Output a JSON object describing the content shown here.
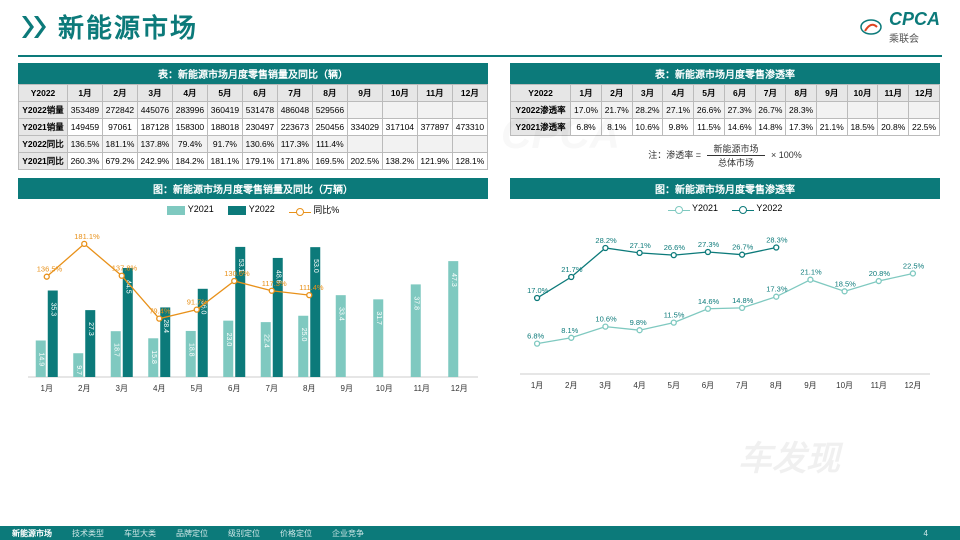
{
  "title": "新能源市场",
  "logo": {
    "brand": "CPCA",
    "sub": "乘联会"
  },
  "accent": "#0c7a7a",
  "orange": "#e8911a",
  "light_teal": "#7fc9c0",
  "months": [
    "1月",
    "2月",
    "3月",
    "4月",
    "5月",
    "6月",
    "7月",
    "8月",
    "9月",
    "10月",
    "11月",
    "12月"
  ],
  "table1": {
    "title": "表：新能源市场月度零售销量及同比（辆）",
    "head": "Y2022",
    "rows": [
      {
        "label": "Y2022销量",
        "cells": [
          "353489",
          "272842",
          "445076",
          "283996",
          "360419",
          "531478",
          "486048",
          "529566",
          "",
          "",
          "",
          ""
        ]
      },
      {
        "label": "Y2021销量",
        "cells": [
          "149459",
          "97061",
          "187128",
          "158300",
          "188018",
          "230497",
          "223673",
          "250456",
          "334029",
          "317104",
          "377897",
          "473310"
        ]
      },
      {
        "label": "Y2022同比",
        "cells": [
          "136.5%",
          "181.1%",
          "137.8%",
          "79.4%",
          "91.7%",
          "130.6%",
          "117.3%",
          "111.4%",
          "",
          "",
          "",
          ""
        ]
      },
      {
        "label": "Y2021同比",
        "cells": [
          "260.3%",
          "679.2%",
          "242.9%",
          "184.2%",
          "181.1%",
          "179.1%",
          "171.8%",
          "169.5%",
          "202.5%",
          "138.2%",
          "121.9%",
          "128.1%"
        ]
      }
    ]
  },
  "table2": {
    "title": "表：新能源市场月度零售渗透率",
    "head": "Y2022",
    "rows": [
      {
        "label": "Y2022渗透率",
        "cells": [
          "17.0%",
          "21.7%",
          "28.2%",
          "27.1%",
          "26.6%",
          "27.3%",
          "26.7%",
          "28.3%",
          "",
          "",
          "",
          ""
        ]
      },
      {
        "label": "Y2021渗透率",
        "cells": [
          "6.8%",
          "8.1%",
          "10.6%",
          "9.8%",
          "11.5%",
          "14.6%",
          "14.8%",
          "17.3%",
          "21.1%",
          "18.5%",
          "20.8%",
          "22.5%"
        ]
      }
    ],
    "note_prefix": "注：渗透率 =",
    "note_num": "新能源市场",
    "note_den": "总体市场",
    "note_suffix": "× 100%"
  },
  "chart1": {
    "title": "图：新能源市场月度零售销量及同比（万辆）",
    "legend": {
      "y2021": "Y2021",
      "y2022": "Y2022",
      "yoy": "同比%"
    },
    "y2021": [
      14.9,
      9.7,
      18.7,
      15.8,
      18.8,
      23.0,
      22.4,
      25.0,
      33.4,
      31.7,
      37.8,
      47.3
    ],
    "y2022": [
      35.3,
      27.3,
      44.5,
      28.4,
      36.0,
      53.1,
      48.6,
      53.0,
      null,
      null,
      null,
      null
    ],
    "yoy": [
      136.5,
      181.1,
      137.8,
      79.4,
      91.7,
      130.6,
      117.3,
      111.4,
      null,
      null,
      null,
      null
    ],
    "ymax": 60,
    "pctmax": 200,
    "color_2021": "#7fc9c0",
    "color_2022": "#0c7a7a",
    "color_yoy": "#e8911a"
  },
  "chart2": {
    "title": "图：新能源市场月度零售渗透率",
    "legend": {
      "y2021": "Y2021",
      "y2022": "Y2022"
    },
    "y2021": [
      6.8,
      8.1,
      10.6,
      9.8,
      11.5,
      14.6,
      14.8,
      17.3,
      21.1,
      18.5,
      20.8,
      22.5
    ],
    "y2022": [
      17.0,
      21.7,
      28.2,
      27.1,
      26.6,
      27.3,
      26.7,
      28.3,
      null,
      null,
      null,
      null
    ],
    "ymax": 32,
    "color_2021": "#7fc9c0",
    "color_2022": "#0c7a7a"
  },
  "footer": {
    "tabs": [
      "新能源市场",
      "技术类型",
      "车型大类",
      "品牌定位",
      "级别定位",
      "价格定位",
      "企业竞争"
    ],
    "active": 0,
    "page": "4"
  },
  "watermark": "车发现"
}
